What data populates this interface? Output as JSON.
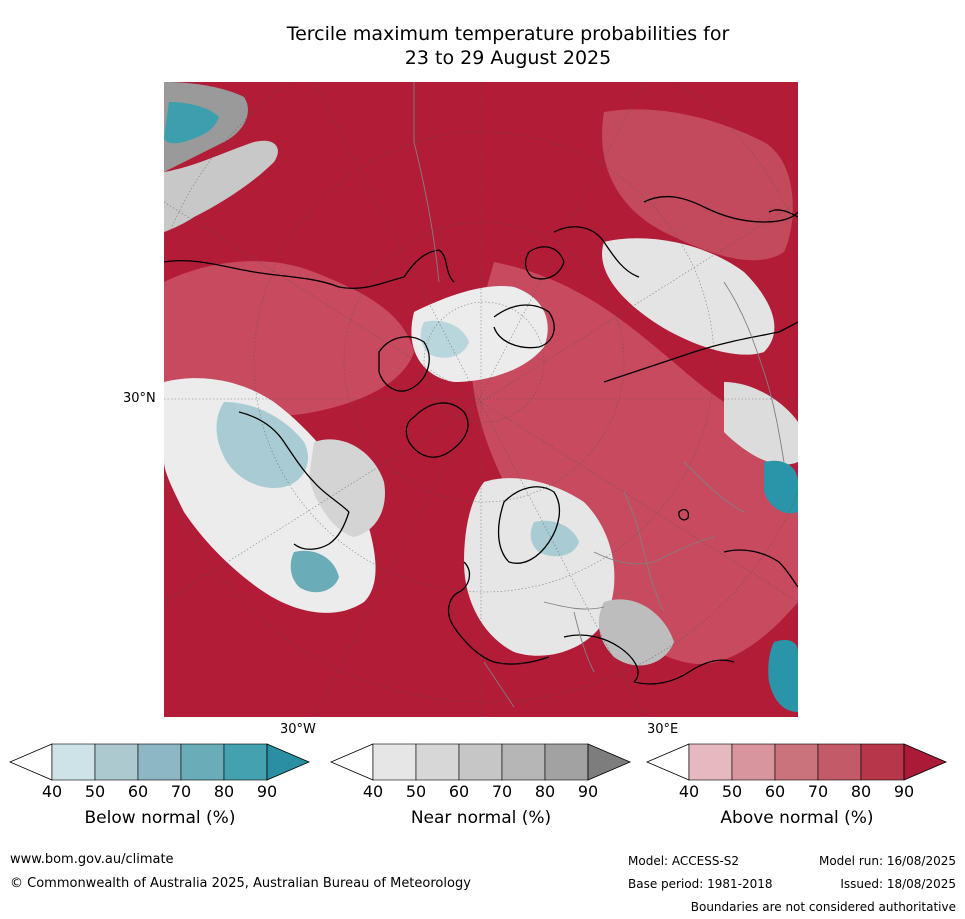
{
  "title": {
    "line1": "Tercile maximum temperature probabilities for",
    "line2": "23 to 29 August 2025"
  },
  "map": {
    "lat_label": "30°N",
    "lon_label_left": "30°W",
    "lon_label_right": "30°E",
    "colors": {
      "above_deep": "#b31c37",
      "above_mid": "#c84a5e",
      "above_light": "#dc8a95",
      "near": "#d4d4d4",
      "near_light": "#ececec",
      "below": "#a9cbd4",
      "below_deep": "#2a94a8",
      "coast": "#000000",
      "border": "#808080"
    }
  },
  "colorbars": [
    {
      "title": "Below normal (%)",
      "ticks": [
        "40",
        "50",
        "60",
        "70",
        "80",
        "90"
      ],
      "colors": [
        "#cde3e8",
        "#abc9ce",
        "#8db7c2",
        "#6aadb8",
        "#43a1b0",
        "#2a8fa3"
      ]
    },
    {
      "title": "Near normal (%)",
      "ticks": [
        "40",
        "50",
        "60",
        "70",
        "80",
        "90"
      ],
      "colors": [
        "#e6e6e6",
        "#d7d7d7",
        "#c6c6c6",
        "#b6b6b6",
        "#a2a2a2",
        "#7d7d7d"
      ]
    },
    {
      "title": "Above normal (%)",
      "ticks": [
        "40",
        "50",
        "60",
        "70",
        "80",
        "90"
      ],
      "colors": [
        "#e5b9bf",
        "#d8959d",
        "#cb737d",
        "#c25a67",
        "#b83649",
        "#ab1a36"
      ]
    }
  ],
  "footer": {
    "website": "www.bom.gov.au/climate",
    "copyright": "© Commonwealth of Australia 2025, Australian Bureau of Meteorology",
    "model": "Model: ACCESS-S2",
    "model_run": "Model run: 16/08/2025",
    "base_period": "Base period: 1981-2018",
    "issued": "Issued: 18/08/2025",
    "disclaimer": "Boundaries are not considered authoritative"
  }
}
